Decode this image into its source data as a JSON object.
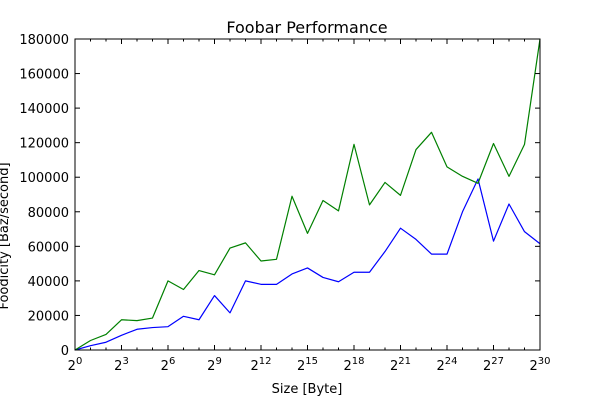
{
  "chart_data": {
    "type": "line",
    "title": "Foobar Performance",
    "xlabel": "Size [Byte]",
    "ylabel": "Foodicity [Baz/second]",
    "x_scale": "log2",
    "x_exponents": [
      0,
      1,
      2,
      3,
      4,
      5,
      6,
      7,
      8,
      9,
      10,
      11,
      12,
      13,
      14,
      15,
      16,
      17,
      18,
      19,
      20,
      21,
      22,
      23,
      24,
      25,
      26,
      27,
      28,
      29,
      30
    ],
    "xlim_exponent": [
      0,
      30
    ],
    "x_ticks": [
      {
        "base": "2",
        "exp": "0"
      },
      {
        "base": "2",
        "exp": "3"
      },
      {
        "base": "2",
        "exp": "6"
      },
      {
        "base": "2",
        "exp": "9"
      },
      {
        "base": "2",
        "exp": "12"
      },
      {
        "base": "2",
        "exp": "15"
      },
      {
        "base": "2",
        "exp": "18"
      },
      {
        "base": "2",
        "exp": "21"
      },
      {
        "base": "2",
        "exp": "24"
      },
      {
        "base": "2",
        "exp": "27"
      },
      {
        "base": "2",
        "exp": "30"
      }
    ],
    "ylim": [
      0,
      180000
    ],
    "y_ticks": [
      "0",
      "20000",
      "40000",
      "60000",
      "80000",
      "100000",
      "120000",
      "140000",
      "160000",
      "180000"
    ],
    "grid": false,
    "series": [
      {
        "color": "#0000ff",
        "values": [
          0,
          2500,
          4500,
          8500,
          12000,
          13000,
          13500,
          19500,
          17500,
          31500,
          21500,
          40000,
          38000,
          38000,
          44000,
          47500,
          42000,
          39500,
          45000,
          45000,
          57000,
          70500,
          64000,
          55500,
          55500,
          80000,
          99000,
          63000,
          84500,
          68500,
          61500
        ]
      },
      {
        "color": "#008000",
        "values": [
          0,
          5500,
          9000,
          17500,
          17000,
          18500,
          40000,
          35000,
          46000,
          43500,
          59000,
          62000,
          51500,
          52500,
          89000,
          67500,
          86500,
          80500,
          119000,
          84000,
          97000,
          89500,
          116000,
          126000,
          106000,
          100500,
          96500,
          119500,
          100500,
          119000,
          180000
        ]
      }
    ]
  }
}
